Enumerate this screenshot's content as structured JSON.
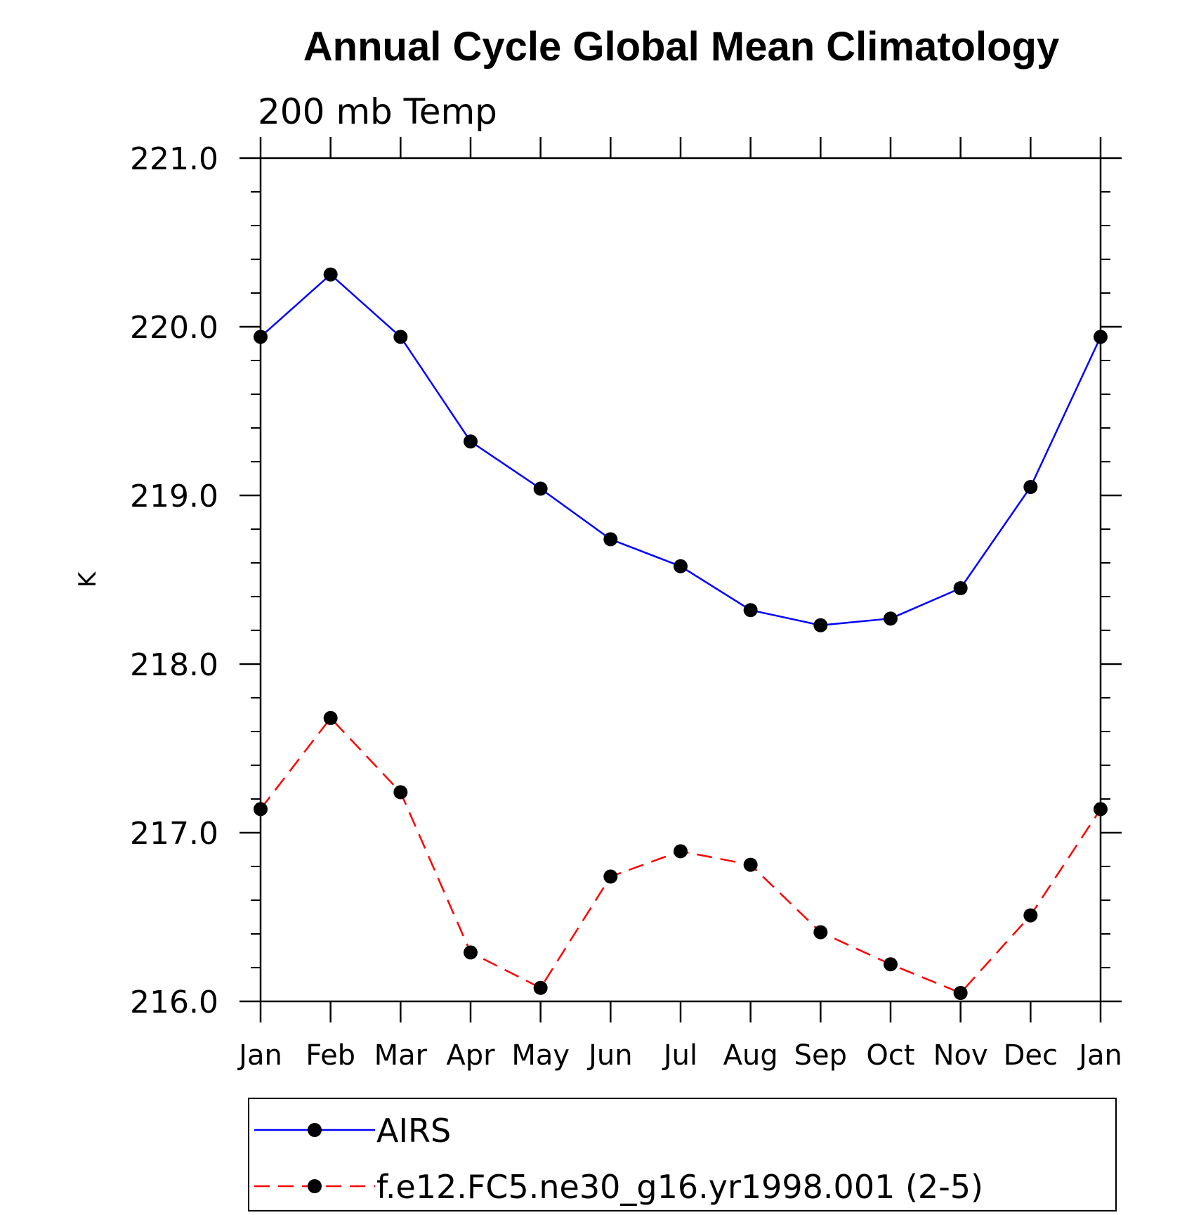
{
  "chart_data": {
    "type": "line",
    "title": "Annual Cycle Global Mean Climatology",
    "subtitle": "200 mb Temp",
    "ylabel": "K",
    "xlabel": "",
    "categories": [
      "Jan",
      "Feb",
      "Mar",
      "Apr",
      "May",
      "Jun",
      "Jul",
      "Aug",
      "Sep",
      "Oct",
      "Nov",
      "Dec",
      "Jan"
    ],
    "ylim": [
      216.0,
      221.0
    ],
    "yticks": [
      "216.0",
      "217.0",
      "218.0",
      "219.0",
      "220.0",
      "221.0"
    ],
    "series": [
      {
        "name": "AIRS",
        "color": "#0000ff",
        "dash": "solid",
        "values": [
          219.94,
          220.31,
          219.94,
          219.32,
          219.04,
          218.74,
          218.58,
          218.32,
          218.23,
          218.27,
          218.45,
          219.05,
          219.94
        ]
      },
      {
        "name": "f.e12.FC5.ne30_g16.yr1998.001 (2-5)",
        "color": "#ff0000",
        "dash": "dashed",
        "values": [
          217.14,
          217.68,
          217.24,
          216.29,
          216.08,
          216.74,
          216.89,
          216.81,
          216.41,
          216.22,
          216.05,
          216.51,
          217.14
        ]
      }
    ],
    "legend_position": "bottom",
    "marker": "filled-circle",
    "marker_color": "#000000",
    "grid": false
  }
}
